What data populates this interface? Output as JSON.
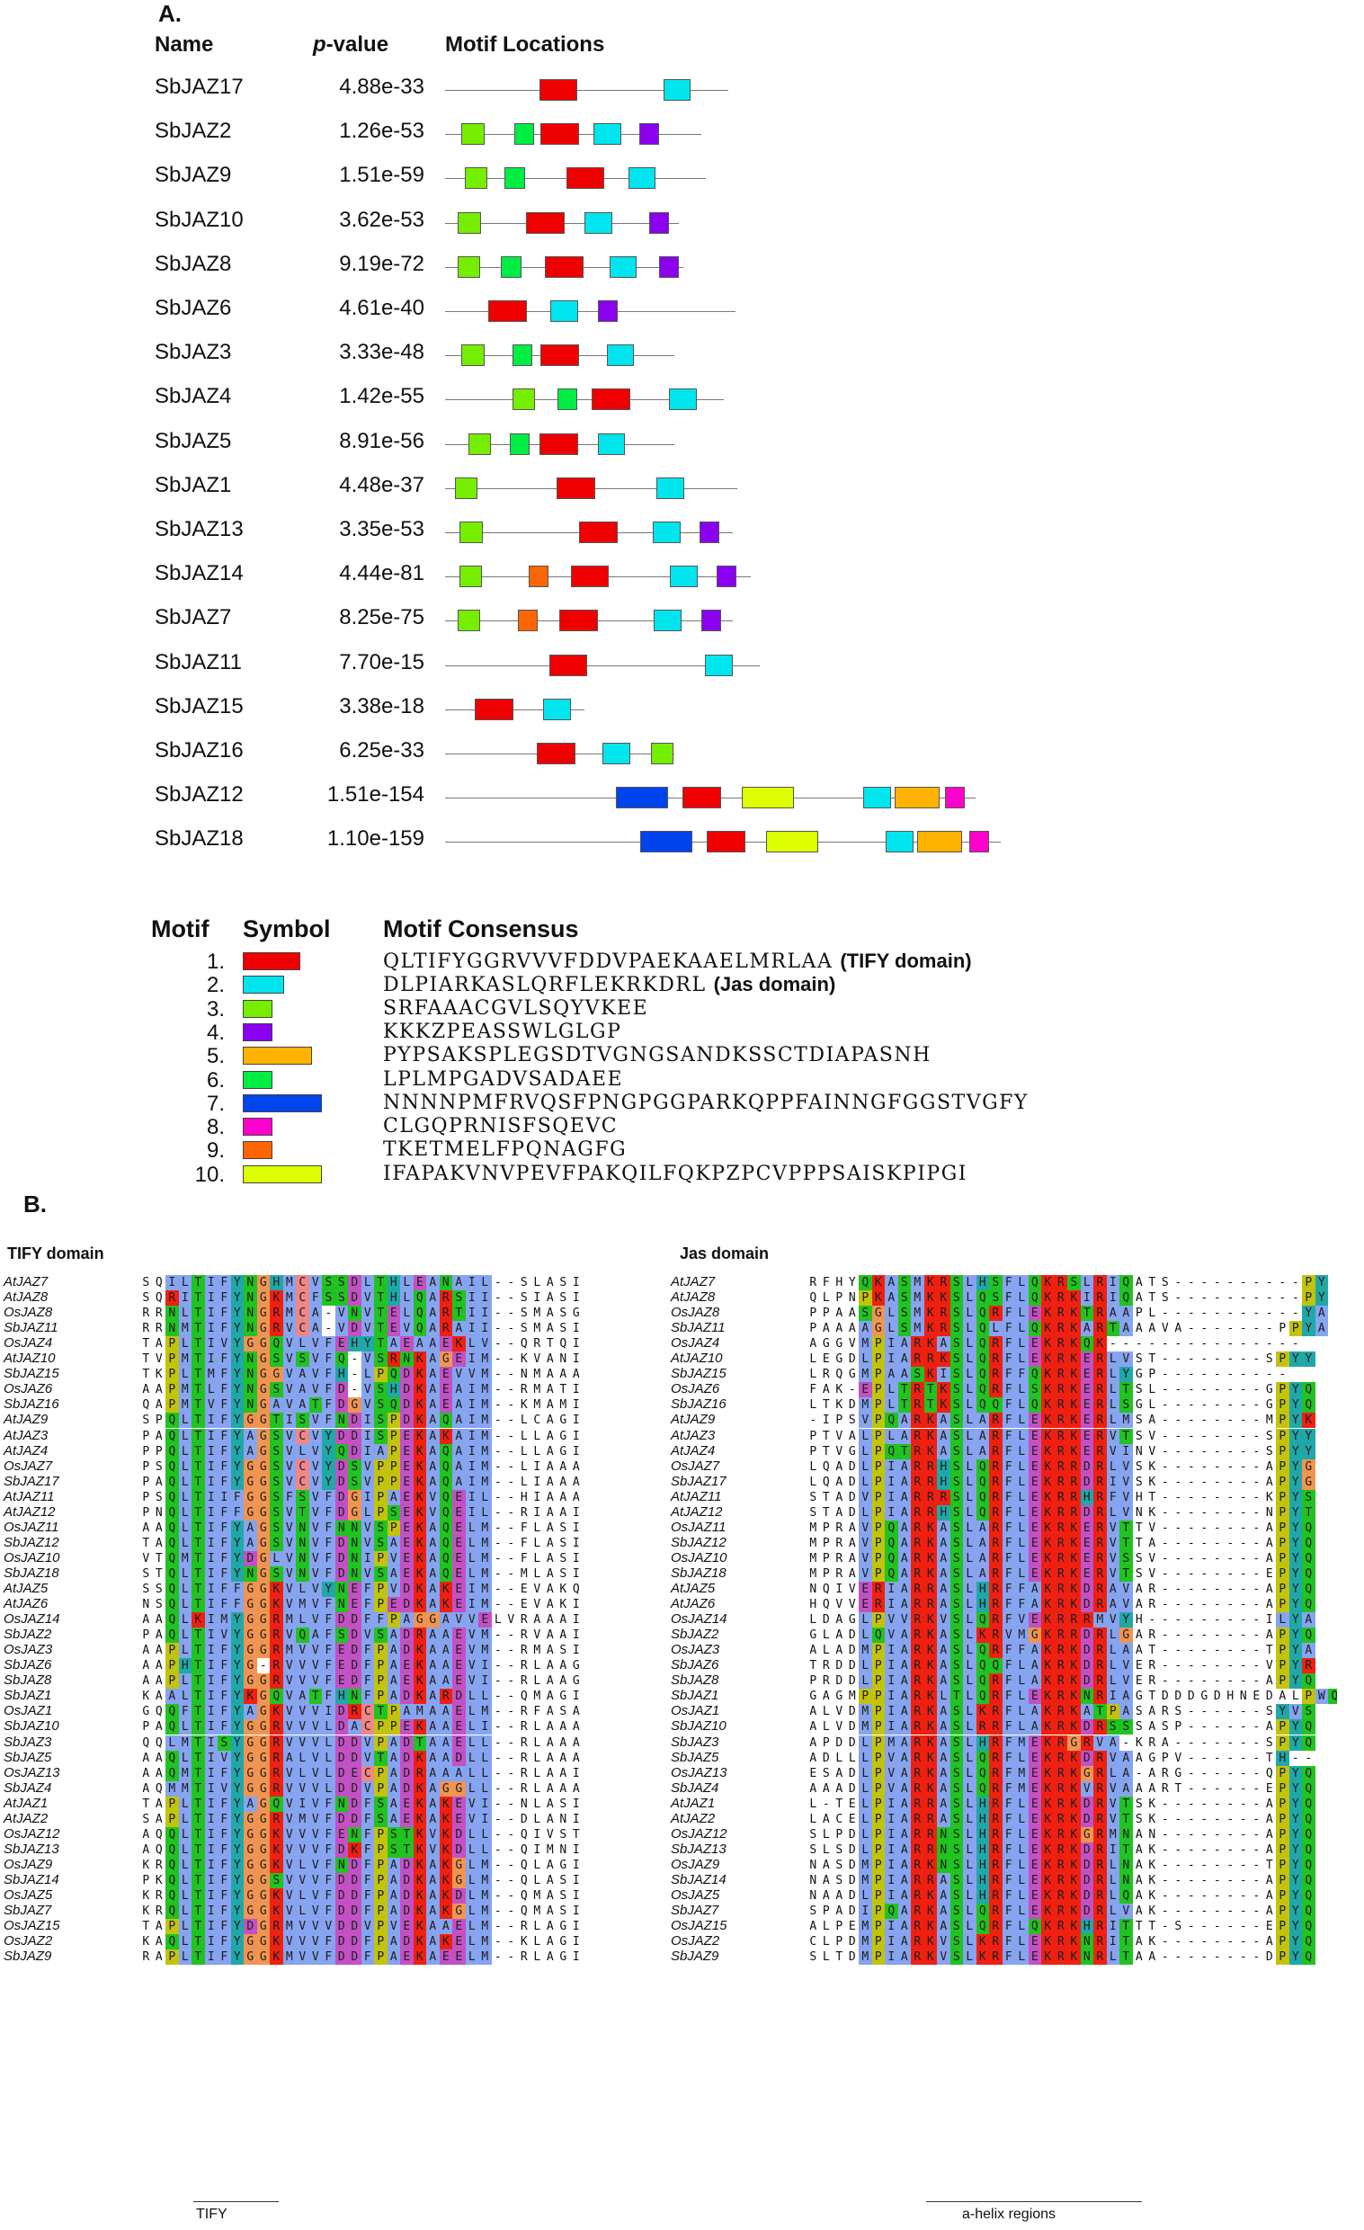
{
  "panel_a": {
    "label": "A.",
    "headers": {
      "name": "Name",
      "pvalue_p": "p",
      "pvalue_rest": "-value",
      "locations": "Motif Locations"
    },
    "colors": {
      "1": "#ee0000",
      "2": "#00e5ee",
      "3": "#76ee00",
      "4": "#8b00ee",
      "5": "#ffb300",
      "6": "#00ee44",
      "7": "#0044ee",
      "8": "#ff00cc",
      "9": "#ff6600",
      "10": "#ddff00"
    },
    "rows": [
      {
        "name": "SbJAZ17",
        "p": "4.88e-33",
        "len": 315,
        "motifs": [
          [
            1,
            105,
            42
          ],
          [
            2,
            243,
            30
          ]
        ]
      },
      {
        "name": "SbJAZ2",
        "p": "1.26e-53",
        "len": 285,
        "motifs": [
          [
            3,
            18,
            26
          ],
          [
            6,
            77,
            22
          ],
          [
            1,
            106,
            43
          ],
          [
            2,
            165,
            31
          ],
          [
            4,
            216,
            22
          ]
        ]
      },
      {
        "name": "SbJAZ9",
        "p": "1.51e-59",
        "len": 290,
        "motifs": [
          [
            3,
            22,
            25
          ],
          [
            6,
            66,
            23
          ],
          [
            1,
            135,
            42
          ],
          [
            2,
            204,
            30
          ]
        ]
      },
      {
        "name": "SbJAZ10",
        "p": "3.62e-53",
        "len": 260,
        "motifs": [
          [
            3,
            14,
            26
          ],
          [
            1,
            90,
            43
          ],
          [
            2,
            155,
            31
          ],
          [
            4,
            227,
            22
          ]
        ]
      },
      {
        "name": "SbJAZ8",
        "p": "9.19e-72",
        "len": 265,
        "motifs": [
          [
            3,
            14,
            25
          ],
          [
            6,
            62,
            23
          ],
          [
            1,
            111,
            43
          ],
          [
            2,
            183,
            30
          ],
          [
            4,
            238,
            22
          ]
        ]
      },
      {
        "name": "SbJAZ6",
        "p": "4.61e-40",
        "len": 323,
        "motifs": [
          [
            1,
            48,
            43
          ],
          [
            2,
            117,
            31
          ],
          [
            4,
            170,
            22
          ]
        ]
      },
      {
        "name": "SbJAZ3",
        "p": "3.33e-48",
        "len": 255,
        "motifs": [
          [
            3,
            18,
            26
          ],
          [
            6,
            75,
            22
          ],
          [
            1,
            106,
            43
          ],
          [
            2,
            180,
            30
          ]
        ]
      },
      {
        "name": "SbJAZ4",
        "p": "1.42e-55",
        "len": 310,
        "motifs": [
          [
            3,
            75,
            25
          ],
          [
            6,
            125,
            22
          ],
          [
            1,
            163,
            43
          ],
          [
            2,
            249,
            31
          ]
        ]
      },
      {
        "name": "SbJAZ5",
        "p": "8.91e-56",
        "len": 255,
        "motifs": [
          [
            3,
            26,
            25
          ],
          [
            6,
            72,
            22
          ],
          [
            1,
            105,
            43
          ],
          [
            2,
            170,
            30
          ]
        ]
      },
      {
        "name": "SbJAZ1",
        "p": "4.48e-37",
        "len": 325,
        "motifs": [
          [
            3,
            11,
            25
          ],
          [
            1,
            124,
            43
          ],
          [
            2,
            235,
            31
          ]
        ]
      },
      {
        "name": "SbJAZ13",
        "p": "3.35e-53",
        "len": 320,
        "motifs": [
          [
            3,
            16,
            26
          ],
          [
            1,
            149,
            43
          ],
          [
            2,
            231,
            31
          ],
          [
            4,
            283,
            22
          ]
        ]
      },
      {
        "name": "SbJAZ14",
        "p": "4.44e-81",
        "len": 340,
        "motifs": [
          [
            3,
            16,
            25
          ],
          [
            9,
            93,
            22
          ],
          [
            1,
            140,
            42
          ],
          [
            2,
            250,
            31
          ],
          [
            4,
            302,
            22
          ]
        ]
      },
      {
        "name": "SbJAZ7",
        "p": "8.25e-75",
        "len": 320,
        "motifs": [
          [
            3,
            14,
            25
          ],
          [
            9,
            81,
            22
          ],
          [
            1,
            127,
            43
          ],
          [
            2,
            232,
            31
          ],
          [
            4,
            285,
            22
          ]
        ]
      },
      {
        "name": "SbJAZ11",
        "p": "7.70e-15",
        "len": 350,
        "motifs": [
          [
            1,
            116,
            42
          ],
          [
            2,
            289,
            31
          ]
        ]
      },
      {
        "name": "SbJAZ15",
        "p": "3.38e-18",
        "len": 155,
        "motifs": [
          [
            1,
            33,
            43
          ],
          [
            2,
            109,
            31
          ]
        ]
      },
      {
        "name": "SbJAZ16",
        "p": "6.25e-33",
        "len": 255,
        "motifs": [
          [
            1,
            102,
            43
          ],
          [
            2,
            175,
            31
          ],
          [
            3,
            229,
            25
          ]
        ]
      },
      {
        "name": "SbJAZ12",
        "p": "1.51e-154",
        "len": 590,
        "motifs": [
          [
            7,
            190,
            58
          ],
          [
            1,
            264,
            43
          ],
          [
            10,
            330,
            58
          ],
          [
            2,
            465,
            31
          ],
          [
            5,
            500,
            50
          ],
          [
            8,
            556,
            22
          ]
        ]
      },
      {
        "name": "SbJAZ18",
        "p": "1.10e-159",
        "len": 618,
        "motifs": [
          [
            7,
            217,
            58
          ],
          [
            1,
            291,
            43
          ],
          [
            10,
            357,
            58
          ],
          [
            2,
            490,
            31
          ],
          [
            5,
            525,
            50
          ],
          [
            8,
            583,
            22
          ]
        ]
      }
    ]
  },
  "legend": {
    "headers": {
      "motif": "Motif",
      "symbol": "Symbol",
      "consensus": "Motif Consensus"
    },
    "items": [
      {
        "num": "1.",
        "motif": 1,
        "w": 58,
        "seq": "QLTIFYGGRVVVFDDVPAEKAAELMRLAA",
        "note": "(TIFY domain)"
      },
      {
        "num": "2.",
        "motif": 2,
        "w": 42,
        "seq": "DLPIARKASLQRFLEKRKDRL",
        "note": "(Jas domain)"
      },
      {
        "num": "3.",
        "motif": 3,
        "w": 30,
        "seq": "SRFAAACGVLSQYVKEE",
        "note": ""
      },
      {
        "num": "4.",
        "motif": 4,
        "w": 30,
        "seq": "KKKZPEASSWLGLGP",
        "note": ""
      },
      {
        "num": "5.",
        "motif": 5,
        "w": 70,
        "seq": "PYPSAKSPLEGSDTVGNGSANDKSSCTDIAPASNH",
        "note": ""
      },
      {
        "num": "6.",
        "motif": 6,
        "w": 30,
        "seq": "LPLMPGADVSADAEE",
        "note": ""
      },
      {
        "num": "7.",
        "motif": 7,
        "w": 80,
        "seq": "NNNNPMFRVQSFPNGPGGPARKQPPFAINNGFGGSTVGFY",
        "note": ""
      },
      {
        "num": "8.",
        "motif": 8,
        "w": 30,
        "seq": "CLGQPRNISFSQEVC",
        "note": ""
      },
      {
        "num": "9.",
        "motif": 9,
        "w": 30,
        "seq": "TKETMELFPQNAGFG",
        "note": ""
      },
      {
        "num": "10.",
        "motif": 10,
        "w": 80,
        "seq": "IFAPAKVNVPEVFPAKQILFQKPZPCVPPPSAISKPIPGI",
        "note": ""
      }
    ]
  },
  "panel_b": {
    "label": "B.",
    "tify_title": "TIFY domain",
    "jas_title": "Jas domain",
    "tify_footer": "TIFY",
    "jas_footer": "a-helix regions",
    "names": [
      "AtJAZ7",
      "AtJAZ8",
      "OsJAZ8",
      "SbJAZ11",
      "OsJAZ4",
      "AtJAZ10",
      "SbJAZ15",
      "OsJAZ6",
      "SbJAZ16",
      "AtJAZ9",
      "AtJAZ3",
      "AtJAZ4",
      "OsJAZ7",
      "SbJAZ17",
      "AtJAZ11",
      "AtJAZ12",
      "OsJAZ11",
      "SbJAZ12",
      "OsJAZ10",
      "SbJAZ18",
      "AtJAZ5",
      "AtJAZ6",
      "OsJAZ14",
      "SbJAZ2",
      "OsJAZ3",
      "SbJAZ6",
      "SbJAZ8",
      "SbJAZ1",
      "OsJAZ1",
      "SbJAZ10",
      "SbJAZ3",
      "SbJAZ5",
      "OsJAZ13",
      "SbJAZ4",
      "AtJAZ1",
      "AtJAZ2",
      "OsJAZ12",
      "SbJAZ13",
      "OsJAZ9",
      "SbJAZ14",
      "OsJAZ5",
      "SbJAZ7",
      "OsJAZ15",
      "OsJAZ2",
      "SbJAZ9"
    ],
    "tify_seqs": [
      "SQILTIFYNGHMCVSSDLTHLEANAIL--SLASI",
      "SQRITIFYNGKMCFSSDVTHLQARSII--SIASI",
      "RRNLTIFYNGRMCA-VNVTELQARTII--SMASG",
      "RRNMTIFYNGRVCA-VDVTEVQARAII--SMASI",
      "TAPLTIVYGGQVLVFEHYTAEAAEKLV--QRTQI",
      "TVPMTIFYNGSVSVFQ-VSRNKAGEIM--KVANI",
      "TKPLTMFYNGGVAVFH-LPQDKAEVVM--NMAAA",
      "AAPMTLFYNGSVAVFD-VSHDKAEAIM--RMATI",
      "QAPMTVFYNGAVATFDGVSQDKAEAIM--KMAMI",
      "SPQLTIFYGGTISVFNDISPDKAQAIM--LCAGI",
      "PAQLTIFYAGSVCVYDDISPEKAKAIM--LLAGI",
      "PPQLTIFYAGSVLVYQDIAPEKAQAIM--LLAGI",
      "PSQLTIFYGGSVCVYDSVPPEKAQAIM--LIAAA",
      "PAQLTIFYGGSVCVYDSVPPEKAQAIM--LIAAA",
      "PSQLTIIFGGSFSVFDGIPAEKVQEIL--HIAAA",
      "PNQLTIFFGGSVTVFDGLPSEKVQEIL--RIAAI",
      "AAQLTIFYAGSVNVFNNVSPEKAQELM--FLASI",
      "TAQLTIFYAGSVNVFDNVSAEKAQELM--FLASI",
      "VTQMTIFYDGLVNVFDNIPVEKAQELM--FLASI",
      "STQLTIFYNGSVNVFDNVSAEKAQELM--MLASI",
      "SSQLTIFFGGKVLVYNEFPVDKAKEIM--EVAKQ",
      "NSQLTIFFGGKVMVFNEFPEDKAKEIM--EVAKI",
      "AAQLKIMYGGRMLVFDDFFPAGGAVVELVRAAAI",
      "PAQLTIVYGGRVQAFSDVSADRAAEVM--RVAAI",
      "AAPLTIFYGGRMVVFEDFPADKAAEVM--RMASI",
      "AAPHTIFYG-RVVVFEDFPAEKAAEVI--RLAAG",
      "AAPLTIFYGGRVVVFEDFPAEKAAEVI--RLAAG",
      "KAALTIFYKGQVATFHNFPADKARDLL--QMAGI",
      "GQQFTIFYAGKVVVIDRCTPAMAAELM--RFASA",
      "PAQLTIFYGGRVVVLDACPPEKAAELI--RLAAA",
      "QQLMTISYGGRVVVLDDVPADTAAELL--RLAAA",
      "AAQLTIVYGGRALVLDDVTADKAADLL--RLAAA",
      "AAQMTIFYGGRVLVLDECPADRAAALL--RLAAI",
      "AQMMTIVYGGRVVVLDDVPADKAGGLL--RLAAA",
      "TAPLTIFYAGQVIVFNDFSAEKAKEVI--NLASI",
      "SAPLTIFYGGRVMVFDDFSAEKAKEVI--DLANI",
      "AQQLTIFYGGKVVVFENFPSTKVKDLL--QIVST",
      "AQQLTIFYGGKVVVFDKFPSTKVKDLL--QIMNI",
      "KRQLTIFYGGKVLVFNDFPADKAKGLM--QLAGI",
      "PKQLTIFYGGSVVVFDDFPADKAKGLM--QLASI",
      "KRQLTIFYGGKVLVFDDFPADKAKDLM--QMASI",
      "KRQLTIFYGGKVLVFDDFPADKAKGLM--QMASI",
      "TAPLTIFYDGRMVVVDDVPVEKAAELM--RLAGI",
      "KAQLTIFYGGKVVVFDDFPADKAKELM--KLAGI",
      "RAPLTIFYGGKMVVFDDFPAEKAEELM--RLAGI"
    ],
    "jas_seqs": [
      "RFHYQKASMKRSLHSFLQKRSLRIQATS----------PY",
      "QLPNPKASMKKSLQSFLQKRKIRIQATS----------PY",
      "PPAASGLSMKRSLQRFLEKRKTRAAPL-----------YA",
      "PAAAAGLSMKRSLQLFLQKRKARTAAAVA-------PPYA",
      "AGGVMPIARKASLQRFLEKRKQK---------------",
      "LEGDLPIARRKSLQRFLEKRKERLVST--------SPYY",
      "LRQGMPAASKISLQRFFQKRKERLYGP----------",
      "FAK-EPLTRTKSLQRFLSKRKERLTSL--------GPYQ",
      "LTKDMPLTRTKSLQQFLQKRKERLSGL--------GPYQ",
      "-IPSVPQARKASLARFLEKRKERLMSA--------MPYK",
      "PTVALPLARKASLARFLEKRKERVTSV--------SPYY",
      "PTVGLPQTRKASLARFLEKRKERVINV--------SPYY",
      "LQADLPIARRHSLQRFLEKRRDRLVSK--------APYG",
      "LQADLPIARRHSLQRFLEKRRDRIVSK--------APYG",
      "STADVPIARRRSLQRFLEKRRHRFVHT--------KPYS",
      "STADLPIARRHSLQRFLEKRRDRLVNK--------NPYT",
      "MPRAVPQARKASLARFLEKRKERVTTV--------APYQ",
      "MPRAVPQARKASLARFLEKRKERVTTA--------APYQ",
      "MPRAVPQARKASLARFLEKRKERVSSV--------APYQ",
      "MPRAVPQARKASLARFLEKRKERVTSV--------EPYQ",
      "NQIVERIARRASLHRFFAKRKDRAVAR--------APYQ",
      "HQVVERIARRASLHRFFAKRKDRAVAR--------APYQ",
      "LDAGLPVVRKVSLQRFVEKRRRMVYH---------ILYA",
      "GLADLQVARKASLKRVMGKRRDRLGAR--------APYQ",
      "ALADMPIARKASLQRFFAKRKDRLAAT--------TPYA",
      "TRDDLPIARKASLQQFLAKRKDRLVER--------VPYR",
      "PRDDLPIARKASLQRFLAKRKDRLVER--------APYQ",
      "GAGMPPIARKLTLQRFLEKRKNRIAGTDDDGDHNEDALPWQ",
      "ALVDMPIARKASLKRFLAKRKATPASARS------SYVS",
      "ALVDMPIARKASLRRFLAKRKDRSSSASP------APYQ",
      "APDDLPMARKASLHRFMEKRGRVA-KRA-------SPYQ",
      "ADLLLPVARKASLQRFLEKRKDRVAAGPV------TH--",
      "ESADLPVARKASLQRFMEKRKGRLA-ARG------QPYQ",
      "AAADLPVARKASLQRFMEKRKVRVAAART------EPYQ",
      "L-TELPIARRASLHRFLEKRKDRVTSK--------APYQ",
      "LACELPIARRASLHRFLEKRKDRVTSK--------APYQ",
      "SLPDLPIARRNSLHRFLEKRKGRMNAN--------APYQ",
      "SLSDLPIARRNSLHRFLEKRKDRITAK--------APYQ",
      "NASDMPIARKNSLHRFLEKRKDRLNAK--------TPYQ",
      "NASDMPIARRASLHRFLEKRKDRLNAK--------APYQ",
      "NAADLPIARKASLHRFLEKRKDRLQAK--------APYQ",
      "SPADIPQARKASLQRFLEKRKDRLVAK--------APYQ",
      "ALPEMPIARKASLQRFLQKRKHRITTT-S------EPYQ",
      "CLPDMPIARKVSLKRFLEKRKNRITAK--------APYQ",
      "SLTDMPIARKVSLKRFLEKRKNRLTAA--------DPYQ"
    ]
  }
}
